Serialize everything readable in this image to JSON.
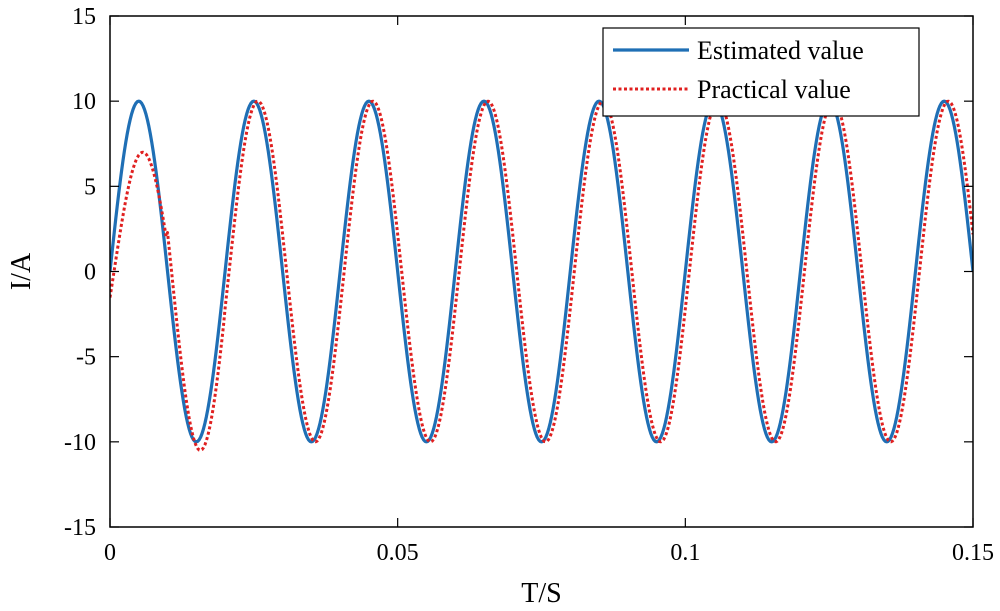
{
  "chart_data": {
    "type": "line",
    "title": "",
    "xlabel": "T/S",
    "ylabel": "I/A",
    "xlim": [
      0,
      0.15
    ],
    "ylim": [
      -15,
      15
    ],
    "x_ticks": [
      0,
      0.05,
      0.1,
      0.15
    ],
    "x_tick_labels": [
      "0",
      "0.05",
      "0.1",
      "0.15"
    ],
    "y_ticks": [
      -15,
      -10,
      -5,
      0,
      5,
      10,
      15
    ],
    "y_tick_labels": [
      "-15",
      "-10",
      "-5",
      "0",
      "5",
      "10",
      "15"
    ],
    "grid": false,
    "legend_position": "top-right",
    "series": [
      {
        "name": "Estimated value",
        "color": "#1f6fb5",
        "style": "solid",
        "model": "sine",
        "amplitude": 10,
        "frequency_hz": 50,
        "phase_shift_s": 0,
        "x_start": 0,
        "x_end": 0.15,
        "points": 601
      },
      {
        "name": "Practical value",
        "color": "#e02020",
        "style": "dotted",
        "model": "sine_with_startup_transient",
        "amplitude": 10,
        "frequency_hz": 50,
        "phase_shift_s": 0.0007,
        "first_peak_value": 7,
        "first_trough_value": -10.5,
        "transient_end_s": 0.02,
        "x_start": 0,
        "x_end": 0.15,
        "points": 601
      }
    ]
  }
}
